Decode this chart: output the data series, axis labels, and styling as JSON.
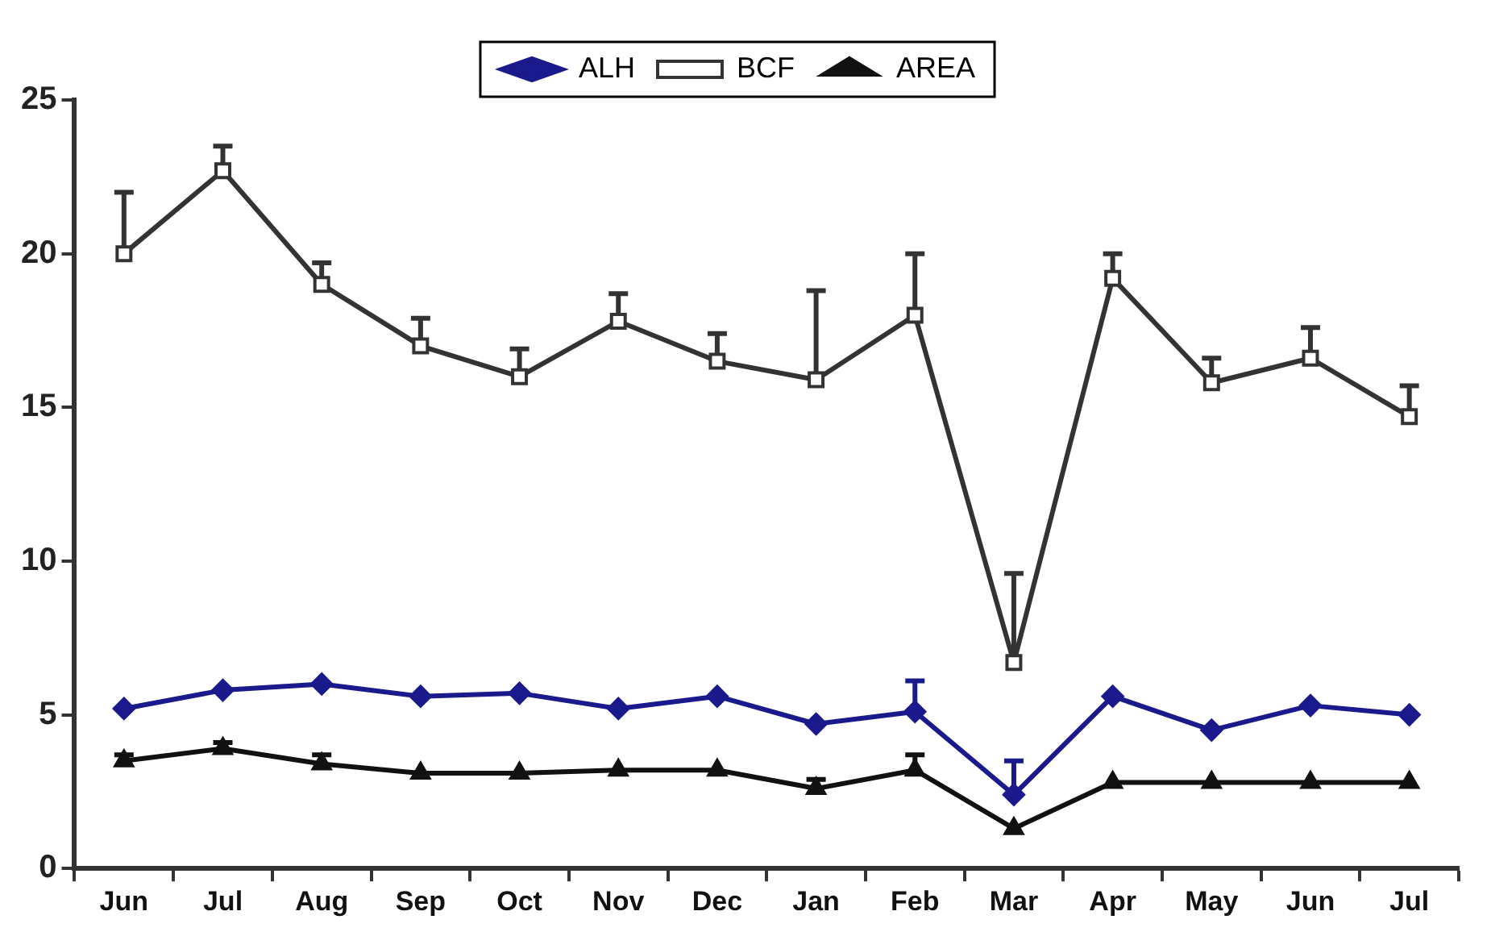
{
  "chart_data": {
    "type": "line",
    "categories": [
      "Jun",
      "Jul",
      "Aug",
      "Sep",
      "Oct",
      "Nov",
      "Dec",
      "Jan",
      "Feb",
      "Mar",
      "Apr",
      "May",
      "Jun",
      "Jul"
    ],
    "series": [
      {
        "name": "ALH",
        "color": "#1a1a8c",
        "marker": "diamond",
        "values": [
          5.2,
          5.8,
          6.0,
          5.6,
          5.7,
          5.2,
          5.6,
          4.7,
          5.1,
          2.4,
          5.6,
          4.5,
          5.3,
          5.0
        ],
        "errors": [
          null,
          null,
          null,
          null,
          null,
          null,
          null,
          null,
          [
            5.1,
            6.1
          ],
          [
            2.4,
            3.5
          ],
          null,
          null,
          null,
          null
        ]
      },
      {
        "name": "BCF",
        "color": "#333333",
        "marker": "square",
        "values": [
          20.0,
          22.7,
          19.0,
          17.0,
          16.0,
          17.8,
          16.5,
          15.9,
          18.0,
          6.7,
          19.2,
          15.8,
          16.6,
          14.7
        ],
        "errors": [
          [
            20.0,
            22.0
          ],
          [
            22.7,
            23.5
          ],
          [
            19.0,
            19.7
          ],
          [
            17.0,
            17.9
          ],
          [
            16.0,
            16.9
          ],
          [
            17.8,
            18.7
          ],
          [
            16.5,
            17.4
          ],
          [
            15.9,
            18.8
          ],
          [
            18.0,
            20.0
          ],
          [
            6.7,
            9.6
          ],
          [
            19.2,
            20.0
          ],
          [
            15.8,
            16.6
          ],
          [
            16.6,
            17.6
          ],
          [
            14.7,
            15.7
          ]
        ]
      },
      {
        "name": "AREA",
        "color": "#111111",
        "marker": "triangle",
        "values": [
          3.5,
          3.9,
          3.4,
          3.1,
          3.1,
          3.2,
          3.2,
          2.6,
          3.2,
          1.3,
          2.8,
          2.8,
          2.8,
          2.8
        ],
        "errors": [
          [
            3.5,
            3.7
          ],
          [
            3.9,
            4.1
          ],
          [
            3.4,
            3.7
          ],
          null,
          null,
          null,
          null,
          [
            2.6,
            2.9
          ],
          [
            3.2,
            3.7
          ],
          null,
          null,
          null,
          null,
          null
        ]
      }
    ],
    "ylim": [
      0,
      25
    ],
    "yticks": [
      0,
      5,
      10,
      15,
      20,
      25
    ],
    "grid": false,
    "legend": "top"
  }
}
